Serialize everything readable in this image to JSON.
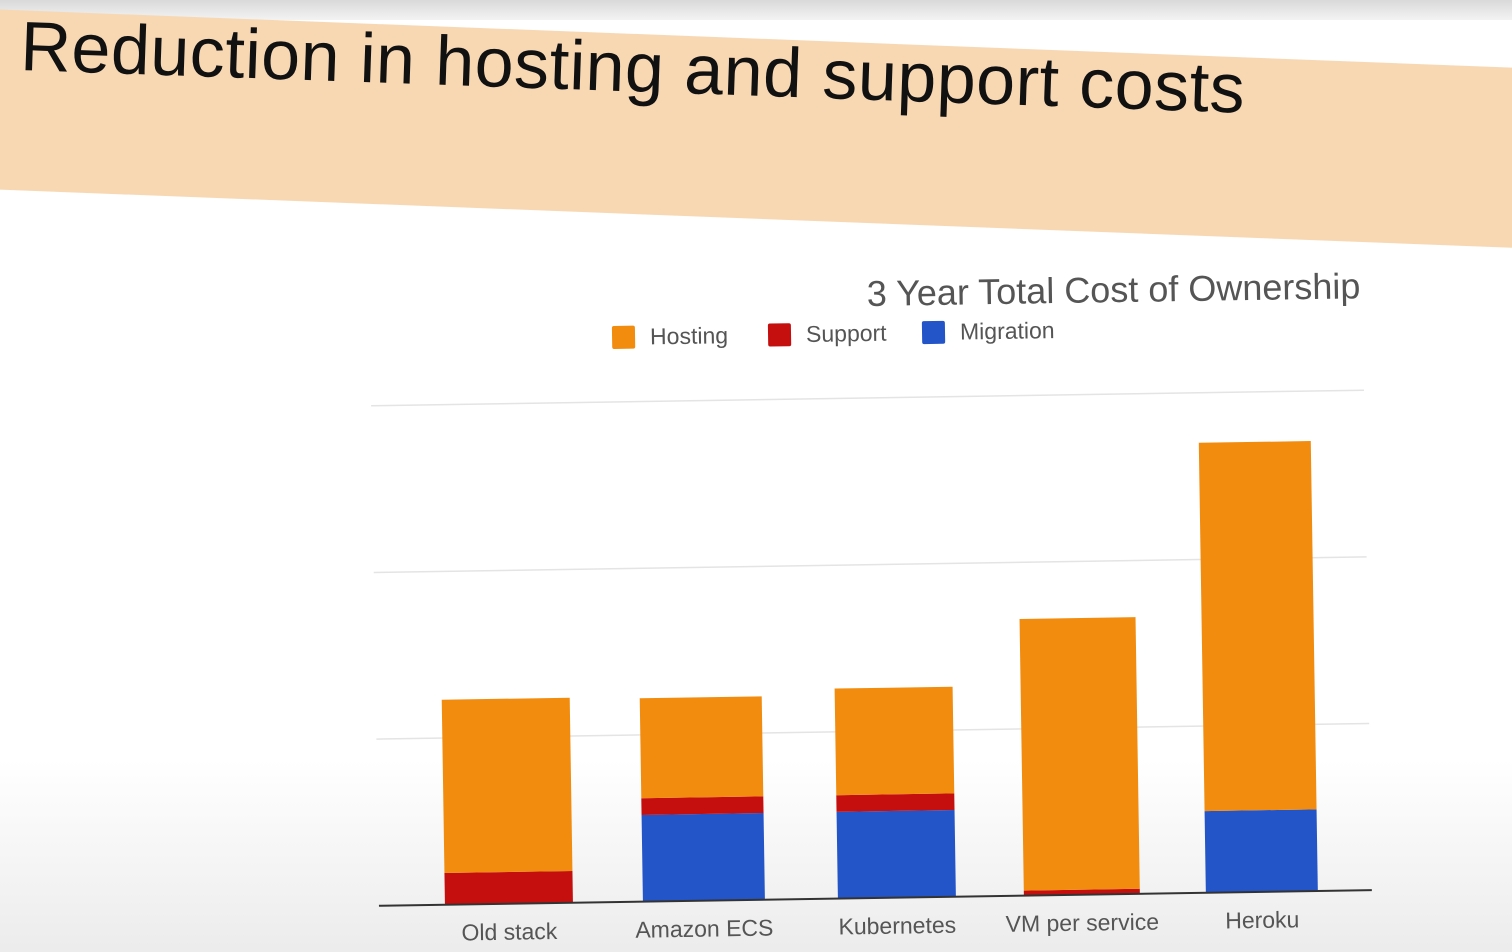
{
  "slide": {
    "title": "Reduction in hosting and support costs"
  },
  "chart_data": {
    "type": "bar",
    "stacked": true,
    "title": "3 Year Total Cost of Ownership",
    "xlabel": "",
    "ylabel": "",
    "categories": [
      "Old stack",
      "Amazon ECS",
      "Kubernetes",
      "VM per service",
      "Heroku"
    ],
    "series": [
      {
        "name": "Migration",
        "color": "#2355c9",
        "values": [
          0,
          0.52,
          0.52,
          0,
          0.49
        ]
      },
      {
        "name": "Support",
        "color": "#c50f0f",
        "values": [
          0.19,
          0.1,
          0.1,
          0.03,
          0
        ]
      },
      {
        "name": "Hosting",
        "color": "#f28c0f",
        "values": [
          1.04,
          0.6,
          0.64,
          1.63,
          2.21
        ]
      }
    ],
    "legend_order": [
      "Hosting",
      "Support",
      "Migration"
    ],
    "legend_position": "top",
    "ylim": [
      0,
      3
    ],
    "gridlines": [
      1,
      2,
      3
    ],
    "grid": true,
    "y_tick_labels_shown": false
  }
}
